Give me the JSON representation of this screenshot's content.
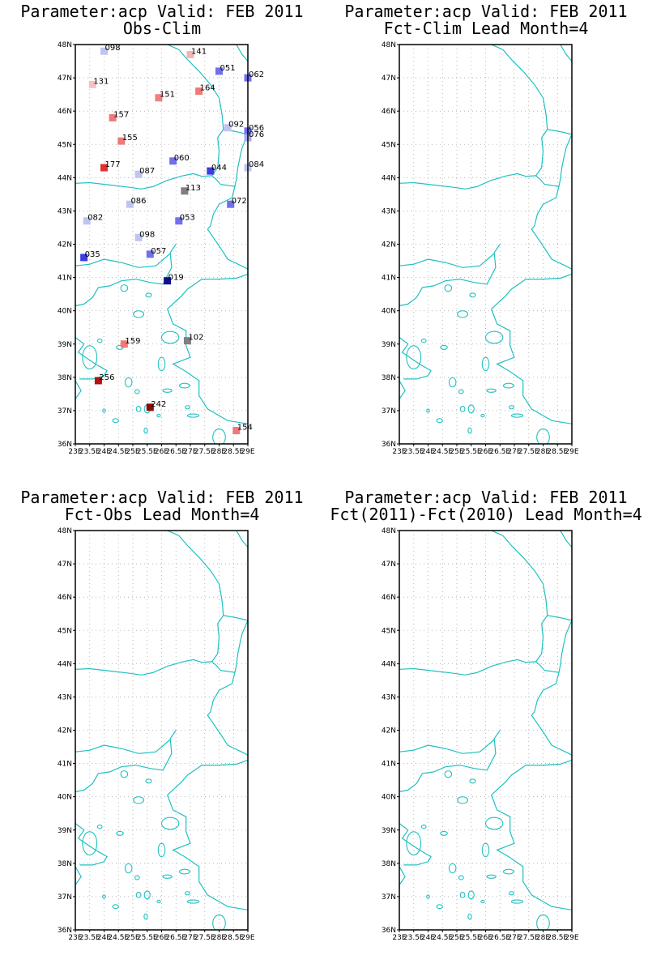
{
  "panels": [
    {
      "title1": "Parameter:acp Valid: FEB 2011",
      "title2": "Obs-Clim",
      "has_stations": true
    },
    {
      "title1": "Parameter:acp Valid: FEB 2011",
      "title2": "Fct-Clim Lead Month=4",
      "has_stations": false
    },
    {
      "title1": "Parameter:acp Valid: FEB 2011",
      "title2": "Fct-Obs Lead Month=4",
      "has_stations": false
    },
    {
      "title1": "Parameter:acp Valid: FEB 2011",
      "title2": "Fct(2011)-Fct(2010) Lead Month=4",
      "has_stations": false
    }
  ],
  "map": {
    "lat_labels": [
      "36N",
      "37N",
      "38N",
      "39N",
      "40N",
      "41N",
      "42N",
      "43N",
      "44N",
      "45N",
      "46N",
      "47N",
      "48N"
    ],
    "lat_values": [
      36,
      37,
      38,
      39,
      40,
      41,
      42,
      43,
      44,
      45,
      46,
      47,
      48
    ],
    "lon_labels": [
      "23E",
      "23.5E",
      "24E",
      "24.5E",
      "25E",
      "25.5E",
      "26E",
      "26.5E",
      "27E",
      "27.5E",
      "28E",
      "28.5E",
      "29E"
    ],
    "lon_values": [
      23,
      23.5,
      24,
      24.5,
      25,
      25.5,
      26,
      26.5,
      27,
      27.5,
      28,
      28.5,
      29
    ],
    "lon_range": [
      23,
      29
    ],
    "lat_range": [
      36,
      48
    ],
    "coast_color": "#20c0c0",
    "grid_color": "#aaaaaa"
  },
  "stations": [
    {
      "label": "098",
      "lon": 24.0,
      "lat": 47.8,
      "color": "#c0c4f0"
    },
    {
      "label": "141",
      "lon": 27.0,
      "lat": 47.7,
      "color": "#f4b4b4"
    },
    {
      "label": "051",
      "lon": 28.0,
      "lat": 47.2,
      "color": "#7070ee"
    },
    {
      "label": "062",
      "lon": 29.0,
      "lat": 47.0,
      "color": "#7070ee"
    },
    {
      "label": "131",
      "lon": 23.6,
      "lat": 46.8,
      "color": "#f4c0c0"
    },
    {
      "label": "151",
      "lon": 25.9,
      "lat": 46.4,
      "color": "#f08080"
    },
    {
      "label": "164",
      "lon": 27.3,
      "lat": 46.6,
      "color": "#f07878"
    },
    {
      "label": "157",
      "lon": 24.3,
      "lat": 45.8,
      "color": "#f07878"
    },
    {
      "label": "092",
      "lon": 28.3,
      "lat": 45.5,
      "color": "#c0c4f0"
    },
    {
      "label": "056",
      "lon": 29.0,
      "lat": 45.4,
      "color": "#7070ee"
    },
    {
      "label": "076",
      "lon": 29.0,
      "lat": 45.2,
      "color": "#a8a8f0"
    },
    {
      "label": "155",
      "lon": 24.6,
      "lat": 45.1,
      "color": "#f07878"
    },
    {
      "label": "060",
      "lon": 26.4,
      "lat": 44.5,
      "color": "#7070ee"
    },
    {
      "label": "177",
      "lon": 24.0,
      "lat": 44.3,
      "color": "#e03030"
    },
    {
      "label": "087",
      "lon": 25.2,
      "lat": 44.1,
      "color": "#c0c4f0"
    },
    {
      "label": "044",
      "lon": 27.7,
      "lat": 44.2,
      "color": "#3c3ce0"
    },
    {
      "label": "084",
      "lon": 29.0,
      "lat": 44.3,
      "color": "#c0c4f0"
    },
    {
      "label": "113",
      "lon": 26.8,
      "lat": 43.6,
      "color": "#808080"
    },
    {
      "label": "086",
      "lon": 24.9,
      "lat": 43.2,
      "color": "#c0c4f0"
    },
    {
      "label": "072",
      "lon": 28.4,
      "lat": 43.2,
      "color": "#7070ee"
    },
    {
      "label": "082",
      "lon": 23.4,
      "lat": 42.7,
      "color": "#c0c4f0"
    },
    {
      "label": "053",
      "lon": 26.6,
      "lat": 42.7,
      "color": "#7070ee"
    },
    {
      "label": "098",
      "lon": 25.2,
      "lat": 42.2,
      "color": "#c0c4f0"
    },
    {
      "label": "057",
      "lon": 25.6,
      "lat": 41.7,
      "color": "#7070ee"
    },
    {
      "label": "035",
      "lon": 23.3,
      "lat": 41.6,
      "color": "#3c3ce0"
    },
    {
      "label": "019",
      "lon": 26.2,
      "lat": 40.9,
      "color": "#10108c"
    },
    {
      "label": "102",
      "lon": 26.9,
      "lat": 39.1,
      "color": "#808080"
    },
    {
      "label": "159",
      "lon": 24.7,
      "lat": 39.0,
      "color": "#f07878"
    },
    {
      "label": "256",
      "lon": 23.8,
      "lat": 37.9,
      "color": "#b01414"
    },
    {
      "label": "242",
      "lon": 25.6,
      "lat": 37.1,
      "color": "#8c0a0a"
    },
    {
      "label": "154",
      "lon": 28.6,
      "lat": 36.4,
      "color": "#f07878"
    }
  ]
}
